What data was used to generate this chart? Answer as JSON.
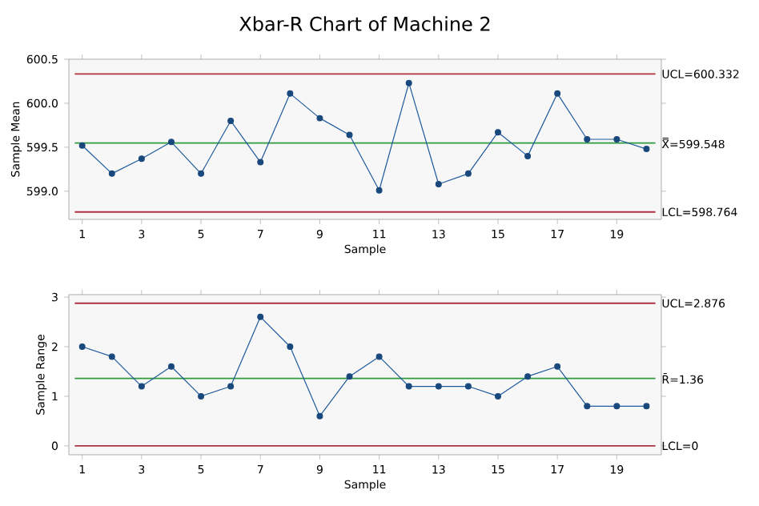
{
  "chart_data": [
    {
      "type": "line",
      "title": "Xbar-R Chart of Machine 2",
      "xlabel": "Sample",
      "ylabel": "Sample Mean",
      "x": [
        1,
        2,
        3,
        4,
        5,
        6,
        7,
        8,
        9,
        10,
        11,
        12,
        13,
        14,
        15,
        16,
        17,
        18,
        19,
        20
      ],
      "series": [
        {
          "color": "#1f5a9c",
          "values": [
            599.52,
            599.2,
            599.37,
            599.56,
            599.2,
            599.8,
            599.33,
            600.11,
            599.83,
            599.64,
            599.01,
            600.23,
            599.08,
            599.2,
            599.67,
            599.4,
            600.11,
            599.59,
            599.59,
            599.48
          ]
        }
      ],
      "xlim": [
        0.55,
        20.5
      ],
      "xticks": [
        1,
        3,
        5,
        7,
        9,
        11,
        13,
        15,
        17,
        19
      ],
      "ylim": [
        598.68,
        600.5
      ],
      "yticks": [
        {
          "value": 599,
          "label": "599.0"
        },
        {
          "value": 599.5,
          "label": "599.5"
        },
        {
          "value": 600,
          "label": "600.0"
        },
        {
          "value": 600.5,
          "label": "600.5"
        }
      ],
      "ref_lines": [
        {
          "axis": "y",
          "value": 600.332,
          "label": "UCL=600.332",
          "color": "#b03040"
        },
        {
          "axis": "y",
          "value": 599.548,
          "label": "X̿=599.548",
          "color": "#2e9a3e"
        },
        {
          "axis": "y",
          "value": 598.764,
          "label": "LCL=598.764",
          "color": "#b03040"
        }
      ],
      "marker": "circle"
    },
    {
      "type": "line",
      "xlabel": "Sample",
      "ylabel": "Sample Range",
      "x": [
        1,
        2,
        3,
        4,
        5,
        6,
        7,
        8,
        9,
        10,
        11,
        12,
        13,
        14,
        15,
        16,
        17,
        18,
        19,
        20
      ],
      "series": [
        {
          "color": "#1f5a9c",
          "values": [
            2.0,
            1.8,
            1.2,
            1.6,
            1.0,
            1.2,
            2.6,
            2.0,
            0.6,
            1.4,
            1.8,
            1.2,
            1.2,
            1.2,
            1.0,
            1.4,
            1.6,
            0.8,
            0.8,
            0.8
          ]
        }
      ],
      "xlim": [
        0.55,
        20.5
      ],
      "xticks": [
        1,
        3,
        5,
        7,
        9,
        11,
        13,
        15,
        17,
        19
      ],
      "ylim": [
        -0.18,
        3.05
      ],
      "yticks": [
        0,
        1,
        2,
        3
      ],
      "ref_lines": [
        {
          "axis": "y",
          "value": 2.876,
          "label": "UCL=2.876",
          "color": "#b03040"
        },
        {
          "axis": "y",
          "value": 1.36,
          "label": "R̄=1.36",
          "color": "#2e9a3e"
        },
        {
          "axis": "y",
          "value": 0,
          "label": "LCL=0",
          "color": "#b03040"
        }
      ],
      "marker": "circle"
    }
  ]
}
